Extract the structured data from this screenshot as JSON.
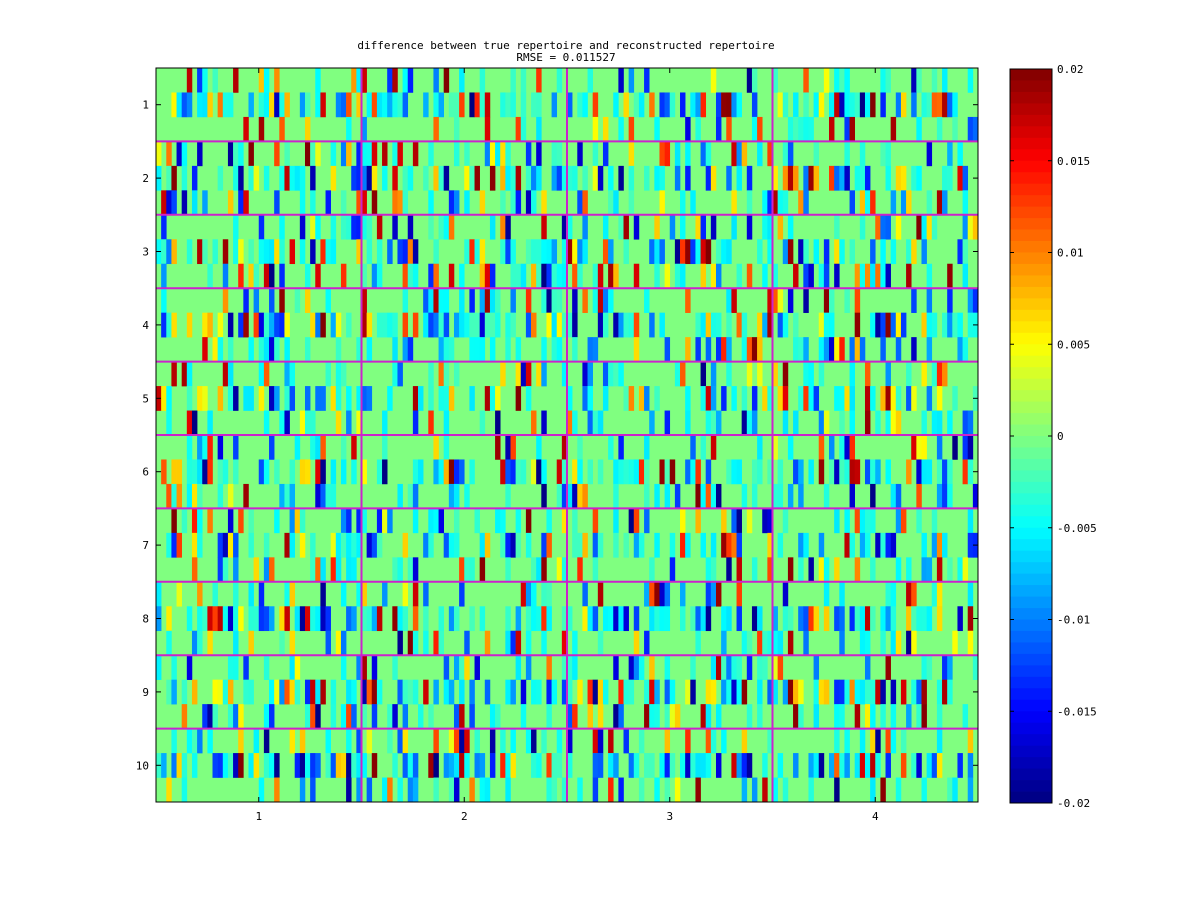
{
  "chart_data": {
    "type": "heatmap",
    "title": "difference between true repertoire and reconstructed repertoire",
    "subtitle": "RMSE = 0.011527",
    "xlabel": "",
    "ylabel": "",
    "x_ticks": [
      "1",
      "2",
      "3",
      "4"
    ],
    "y_ticks": [
      "1",
      "2",
      "3",
      "4",
      "5",
      "6",
      "7",
      "8",
      "9",
      "10"
    ],
    "x_groups": 4,
    "y_groups": 10,
    "rows_per_group": 3,
    "columns_per_group": 40,
    "colormap": "jet",
    "color_range": [
      -0.02,
      0.02
    ],
    "colorbar_ticks": [
      0.02,
      0.015,
      0.01,
      0.005,
      0,
      -0.005,
      -0.01,
      -0.015,
      -0.02
    ],
    "colorbar_tick_labels": [
      "0.02",
      "0.015",
      "0.01",
      "0.005",
      "0",
      "-0.005",
      "-0.01",
      "-0.015",
      "-0.02"
    ],
    "separator_color": "#cc22cc",
    "cell_value_note_rmse": 0.011527
  }
}
